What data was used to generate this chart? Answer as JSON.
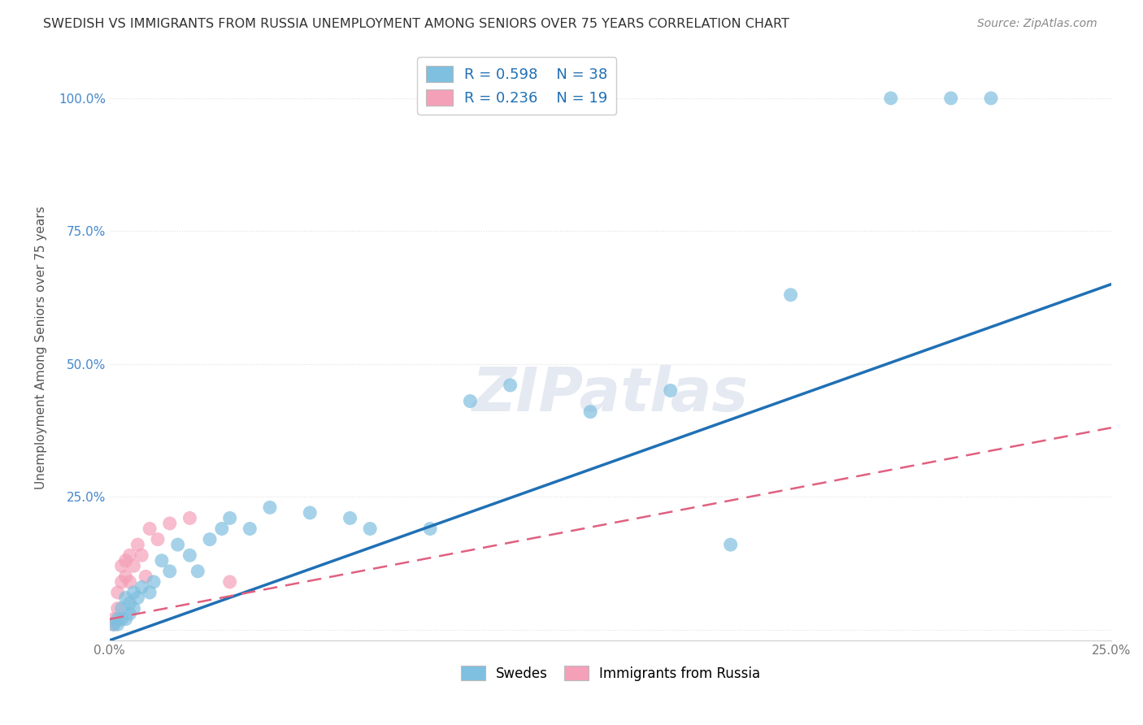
{
  "title": "SWEDISH VS IMMIGRANTS FROM RUSSIA UNEMPLOYMENT AMONG SENIORS OVER 75 YEARS CORRELATION CHART",
  "source": "Source: ZipAtlas.com",
  "ylabel": "Unemployment Among Seniors over 75 years",
  "xlabel_swedes": "Swedes",
  "xlabel_immigrants": "Immigrants from Russia",
  "xmin": 0.0,
  "xmax": 0.25,
  "ymin": -0.02,
  "ymax": 1.08,
  "xticks": [
    0.0,
    0.05,
    0.1,
    0.15,
    0.2,
    0.25
  ],
  "yticks": [
    0.0,
    0.25,
    0.5,
    0.75,
    1.0
  ],
  "ytick_labels": [
    "",
    "25.0%",
    "50.0%",
    "75.0%",
    "100.0%"
  ],
  "xtick_labels": [
    "0.0%",
    "",
    "",
    "",
    "",
    "25.0%"
  ],
  "legend_R_swedes": "R = 0.598",
  "legend_N_swedes": "N = 38",
  "legend_R_immigrants": "R = 0.236",
  "legend_N_immigrants": "N = 19",
  "swedes_color": "#7fbfdf",
  "immigrants_color": "#f4a0b8",
  "swedes_line_color": "#2070b4",
  "immigrants_line_color": "#e06080",
  "swedes_x": [
    0.001,
    0.002,
    0.002,
    0.003,
    0.003,
    0.004,
    0.004,
    0.005,
    0.005,
    0.006,
    0.006,
    0.007,
    0.008,
    0.01,
    0.011,
    0.013,
    0.015,
    0.017,
    0.02,
    0.022,
    0.025,
    0.028,
    0.03,
    0.035,
    0.04,
    0.05,
    0.06,
    0.065,
    0.08,
    0.09,
    0.1,
    0.12,
    0.14,
    0.155,
    0.17,
    0.195,
    0.21,
    0.22
  ],
  "swedes_y": [
    0.01,
    0.01,
    0.02,
    0.02,
    0.04,
    0.02,
    0.06,
    0.03,
    0.05,
    0.04,
    0.07,
    0.06,
    0.08,
    0.07,
    0.09,
    0.13,
    0.11,
    0.16,
    0.14,
    0.11,
    0.17,
    0.19,
    0.21,
    0.19,
    0.23,
    0.22,
    0.21,
    0.19,
    0.19,
    0.43,
    0.46,
    0.41,
    0.45,
    0.16,
    0.63,
    1.0,
    1.0,
    1.0
  ],
  "immigrants_x": [
    0.001,
    0.001,
    0.002,
    0.002,
    0.003,
    0.003,
    0.004,
    0.004,
    0.005,
    0.005,
    0.006,
    0.007,
    0.008,
    0.009,
    0.01,
    0.012,
    0.015,
    0.02,
    0.03
  ],
  "immigrants_y": [
    0.01,
    0.02,
    0.04,
    0.07,
    0.09,
    0.12,
    0.1,
    0.13,
    0.09,
    0.14,
    0.12,
    0.16,
    0.14,
    0.1,
    0.19,
    0.17,
    0.2,
    0.21,
    0.09
  ],
  "swedes_line_x0": 0.0,
  "swedes_line_y0": -0.02,
  "swedes_line_x1": 0.25,
  "swedes_line_y1": 0.65,
  "immigrants_line_x0": 0.0,
  "immigrants_line_y0": 0.02,
  "immigrants_line_x1": 0.25,
  "immigrants_line_y1": 0.38,
  "watermark": "ZIPatlas",
  "background_color": "#ffffff",
  "grid_color": "#e0e0e0"
}
